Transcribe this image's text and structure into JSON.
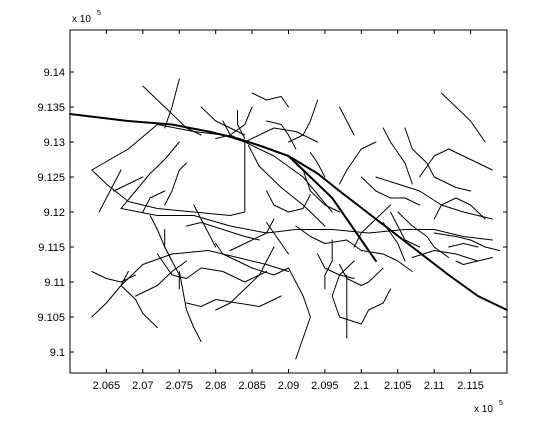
{
  "chart_data": {
    "type": "line",
    "title": "",
    "xlabel": "",
    "ylabel": "",
    "xlim": [
      206000,
      212000
    ],
    "ylim": [
      909700,
      914600
    ],
    "x_ticks": [
      206500,
      207000,
      207500,
      208000,
      208500,
      209000,
      209500,
      210000,
      210500,
      211000,
      211500
    ],
    "y_ticks": [
      910000,
      910500,
      911000,
      911500,
      912000,
      912500,
      913000,
      913500,
      914000
    ],
    "x_tick_labels": [
      "2.065",
      "2.07",
      "2.075",
      "2.08",
      "2.085",
      "2.09",
      "2.095",
      "2.1",
      "2.105",
      "2.11",
      "2.115"
    ],
    "y_tick_labels": [
      "9.1",
      "9.105",
      "9.11",
      "9.115",
      "9.12",
      "9.125",
      "9.13",
      "9.135",
      "9.14"
    ],
    "x_exponent_base": "x 10",
    "x_exponent_power": "5",
    "y_exponent_base": "x 10",
    "y_exponent_power": "5",
    "grid": false,
    "legend": "none",
    "line_color": "#000000",
    "series": [
      {
        "kind": "major",
        "x": [
          206000,
          206800,
          207400,
          207900,
          208300,
          208600,
          209000,
          209400,
          209700,
          210200,
          210700,
          211200,
          211600,
          212000
        ],
        "y": [
          913400,
          913300,
          913250,
          913150,
          913050,
          912950,
          912800,
          912550,
          912300,
          911900,
          911500,
          911100,
          910800,
          910600
        ]
      },
      {
        "kind": "major",
        "x": [
          209000,
          209300,
          209600,
          209800,
          210000,
          210200
        ],
        "y": [
          912800,
          912500,
          912200,
          911900,
          911600,
          911300
        ]
      },
      {
        "kind": "minor",
        "x": [
          206300,
          206800,
          207200,
          207700,
          208100,
          208400,
          208400,
          208200,
          207700,
          207200,
          206800,
          206500,
          206300
        ],
        "y": [
          912600,
          912900,
          913250,
          913150,
          913100,
          913000,
          912000,
          911950,
          912000,
          912050,
          912150,
          912400,
          912600
        ]
      },
      {
        "kind": "minor",
        "x": [
          206700,
          207200,
          207700,
          208200,
          208700,
          209100,
          209600,
          210100,
          210600,
          211000,
          211400,
          211800
        ],
        "y": [
          912050,
          911950,
          911950,
          911800,
          911700,
          911750,
          911750,
          911700,
          911750,
          911750,
          911650,
          911600
        ]
      },
      {
        "kind": "minor",
        "x": [
          208400,
          208800,
          209200,
          209600
        ],
        "y": [
          913000,
          912800,
          912500,
          912000
        ]
      },
      {
        "kind": "minor",
        "x": [
          208450,
          208600,
          208900,
          209200,
          209500
        ],
        "y": [
          912950,
          912650,
          912350,
          912100,
          911800
        ]
      },
      {
        "kind": "minor",
        "x": [
          206700,
          207000,
          207400,
          207900,
          208300,
          208700,
          209000
        ],
        "y": [
          910950,
          911250,
          911400,
          911450,
          911350,
          911250,
          911150
        ]
      },
      {
        "kind": "minor",
        "x": [
          206700,
          206900,
          207000,
          207200
        ],
        "y": [
          910950,
          910750,
          910550,
          910350
        ]
      },
      {
        "kind": "minor",
        "x": [
          206300,
          206500,
          206700,
          206800
        ],
        "y": [
          910500,
          910700,
          910950,
          911150
        ]
      },
      {
        "kind": "minor",
        "x": [
          207200,
          207400,
          207600,
          207800,
          208100,
          208400,
          208700
        ],
        "y": [
          911400,
          911100,
          911050,
          911200,
          911150,
          911000,
          911150
        ]
      },
      {
        "kind": "minor",
        "x": [
          207600,
          207800,
          208000,
          208300,
          208600,
          208900
        ],
        "y": [
          910700,
          910650,
          910750,
          910700,
          910650,
          910800
        ]
      },
      {
        "kind": "minor",
        "x": [
          207500,
          207600,
          207700,
          207800
        ],
        "y": [
          911150,
          910600,
          910350,
          910150
        ]
      },
      {
        "kind": "minor",
        "x": [
          208200,
          208400,
          208700,
          208800
        ],
        "y": [
          911450,
          911550,
          911700,
          911900
        ]
      },
      {
        "kind": "minor",
        "x": [
          209100,
          209300,
          209500,
          209800,
          210000,
          210300,
          210500,
          210700
        ],
        "y": [
          911800,
          911650,
          911550,
          911600,
          911450,
          911400,
          911300,
          911150
        ]
      },
      {
        "kind": "minor",
        "x": [
          209600,
          209600,
          209500,
          209500
        ],
        "y": [
          911600,
          911300,
          911100,
          910900
        ]
      },
      {
        "kind": "minor",
        "x": [
          209900,
          209700,
          209600,
          209700,
          210000,
          210100,
          210300,
          210400
        ],
        "y": [
          911300,
          911100,
          910800,
          910500,
          910400,
          910600,
          910700,
          910900
        ]
      },
      {
        "kind": "minor",
        "x": [
          210200,
          210500,
          210800,
          211100,
          211400,
          211800
        ],
        "y": [
          912500,
          912400,
          912300,
          912100,
          912000,
          911900
        ]
      },
      {
        "kind": "minor",
        "x": [
          210800,
          211000,
          211200,
          211400,
          211600,
          211800
        ],
        "y": [
          912500,
          912800,
          912900,
          912800,
          912700,
          912600
        ]
      },
      {
        "kind": "minor",
        "x": [
          209700,
          209800,
          209900,
          210000,
          210200
        ],
        "y": [
          912400,
          912600,
          912750,
          912900,
          913000
        ]
      },
      {
        "kind": "minor",
        "x": [
          209200,
          209300,
          209500,
          209700
        ],
        "y": [
          912600,
          912300,
          912100,
          912000
        ]
      },
      {
        "kind": "minor",
        "x": [
          208700,
          208800,
          209000,
          209200,
          209300
        ],
        "y": [
          912300,
          912100,
          912000,
          912050,
          912250
        ]
      },
      {
        "kind": "minor",
        "x": [
          209700,
          209800,
          210000,
          210100,
          210300
        ],
        "y": [
          911250,
          911050,
          910950,
          911000,
          911200
        ]
      },
      {
        "kind": "minor",
        "x": [
          210000,
          210200,
          210400,
          210600,
          210800
        ],
        "y": [
          912500,
          912300,
          912200,
          912200,
          912100
        ]
      },
      {
        "kind": "minor",
        "x": [
          210500,
          210700,
          210900,
          211000,
          211200
        ],
        "y": [
          912000,
          911800,
          911650,
          911500,
          911350
        ]
      },
      {
        "kind": "minor",
        "x": [
          210600,
          210700,
          210900,
          211000,
          211300,
          211500
        ],
        "y": [
          913200,
          912900,
          912700,
          912500,
          912350,
          912300
        ]
      },
      {
        "kind": "minor",
        "x": [
          211000,
          211300,
          211500,
          211700,
          211900
        ],
        "y": [
          911700,
          911650,
          911600,
          911500,
          911450
        ]
      },
      {
        "kind": "minor",
        "x": [
          210700,
          211000,
          211300,
          211600
        ],
        "y": [
          911350,
          911450,
          911400,
          911300
        ]
      },
      {
        "kind": "minor",
        "x": [
          207600,
          207800,
          208100,
          208400,
          208600
        ],
        "y": [
          911800,
          911850,
          911750,
          911650,
          911600
        ]
      },
      {
        "kind": "minor",
        "x": [
          208800,
          208700,
          208600,
          208400,
          208200,
          208000
        ],
        "y": [
          911500,
          911300,
          911100,
          910900,
          910700,
          910600
        ]
      },
      {
        "kind": "minor",
        "x": [
          208000,
          208100,
          208300,
          208500,
          208800,
          209000
        ],
        "y": [
          911550,
          911400,
          911300,
          911200,
          911100,
          911200
        ]
      },
      {
        "kind": "minor",
        "x": [
          209000,
          209100,
          209200,
          209300,
          209200,
          209100
        ],
        "y": [
          911200,
          911000,
          910800,
          910500,
          910200,
          909900
        ]
      },
      {
        "kind": "minor",
        "x": [
          209800,
          209800,
          209800,
          209800
        ],
        "y": [
          911100,
          910800,
          910500,
          910200
        ]
      },
      {
        "kind": "minor",
        "x": [
          206700,
          206900,
          207100,
          207300,
          207500
        ],
        "y": [
          912050,
          912300,
          912550,
          912750,
          913000
        ]
      },
      {
        "kind": "minor",
        "x": [
          207300,
          207400,
          207500,
          207600
        ],
        "y": [
          912100,
          912300,
          912600,
          912700
        ]
      },
      {
        "kind": "minor",
        "x": [
          207700,
          207800,
          207900,
          208000
        ],
        "y": [
          912100,
          911900,
          911700,
          911500
        ]
      },
      {
        "kind": "minor",
        "x": [
          207100,
          207200,
          207300,
          207400
        ],
        "y": [
          911950,
          911750,
          911500,
          911300
        ]
      },
      {
        "kind": "minor",
        "x": [
          207300,
          207300,
          207400,
          207500,
          207500
        ],
        "y": [
          911750,
          911500,
          911300,
          911100,
          910900
        ]
      },
      {
        "kind": "minor",
        "x": [
          208700,
          208800,
          208900,
          209000
        ],
        "y": [
          911850,
          911700,
          911550,
          911400
        ]
      },
      {
        "kind": "minor",
        "x": [
          209400,
          209500,
          209700,
          209900
        ],
        "y": [
          911400,
          911200,
          911100,
          911050
        ]
      },
      {
        "kind": "minor",
        "x": [
          209900,
          210000,
          210200,
          210400
        ],
        "y": [
          911500,
          911700,
          911900,
          912100
        ]
      },
      {
        "kind": "minor",
        "x": [
          210300,
          210400,
          210500,
          210600
        ],
        "y": [
          911850,
          911700,
          911550,
          911300
        ]
      },
      {
        "kind": "minor",
        "x": [
          211000,
          211100,
          211300,
          211500,
          211700
        ],
        "y": [
          911900,
          912100,
          912200,
          912100,
          911900
        ]
      },
      {
        "kind": "minor",
        "x": [
          211200,
          211400,
          211600
        ],
        "y": [
          911500,
          911550,
          911500
        ]
      },
      {
        "kind": "minor",
        "x": [
          207000,
          207200,
          207400,
          207600,
          207800
        ],
        "y": [
          913800,
          913600,
          913400,
          913200,
          913100
        ]
      },
      {
        "kind": "minor",
        "x": [
          207500,
          207400,
          207300
        ],
        "y": [
          913900,
          913500,
          913200
        ]
      },
      {
        "kind": "minor",
        "x": [
          208500,
          208700,
          208900,
          209000
        ],
        "y": [
          913700,
          913600,
          913650,
          913500
        ]
      },
      {
        "kind": "minor",
        "x": [
          208500,
          208400,
          208200,
          208000
        ],
        "y": [
          913500,
          913250,
          913100,
          913050
        ]
      },
      {
        "kind": "minor",
        "x": [
          208300,
          208300,
          208400
        ],
        "y": [
          913450,
          913250,
          913050
        ]
      },
      {
        "kind": "minor",
        "x": [
          207800,
          208000,
          208200,
          208400
        ],
        "y": [
          913500,
          913300,
          913200,
          913100
        ]
      },
      {
        "kind": "minor",
        "x": [
          209400,
          209300,
          209200,
          209000
        ],
        "y": [
          913600,
          913300,
          913100,
          913000
        ]
      },
      {
        "kind": "minor",
        "x": [
          209700,
          209800,
          209900
        ],
        "y": [
          913500,
          913300,
          913100
        ]
      },
      {
        "kind": "minor",
        "x": [
          210300,
          210400,
          210600,
          210700
        ],
        "y": [
          913200,
          913000,
          912700,
          912400
        ]
      },
      {
        "kind": "minor",
        "x": [
          211100,
          211300,
          211500,
          211700
        ],
        "y": [
          913700,
          913500,
          913300,
          913000
        ]
      },
      {
        "kind": "minor",
        "x": [
          208400,
          208800,
          209100,
          209400
        ],
        "y": [
          913000,
          913200,
          913150,
          913000
        ]
      },
      {
        "kind": "minor",
        "x": [
          208700,
          208900,
          209000,
          209100
        ],
        "y": [
          913300,
          913250,
          913100,
          912900
        ]
      },
      {
        "kind": "minor",
        "x": [
          208100,
          208200,
          208400
        ],
        "y": [
          913300,
          913100,
          913000
        ]
      },
      {
        "kind": "minor",
        "x": [
          206700,
          206600,
          206500,
          206400
        ],
        "y": [
          912600,
          912400,
          912200,
          912000
        ]
      },
      {
        "kind": "minor",
        "x": [
          206600,
          206800,
          207000
        ],
        "y": [
          912300,
          912400,
          912500
        ]
      },
      {
        "kind": "minor",
        "x": [
          207000,
          207100,
          207300
        ],
        "y": [
          912000,
          912200,
          912300
        ]
      },
      {
        "kind": "minor",
        "x": [
          207600,
          207400,
          207200,
          206900
        ],
        "y": [
          911300,
          911150,
          910950,
          910800
        ]
      },
      {
        "kind": "minor",
        "x": [
          206300,
          206500,
          206700,
          206900
        ],
        "y": [
          911150,
          911050,
          911000,
          911100
        ]
      },
      {
        "kind": "minor",
        "x": [
          209300,
          209400,
          209500
        ],
        "y": [
          912850,
          912700,
          912500
        ]
      },
      {
        "kind": "minor",
        "x": [
          210400,
          210500,
          210600,
          210800
        ],
        "y": [
          912000,
          911800,
          911600,
          911500
        ]
      },
      {
        "kind": "minor",
        "x": [
          211300,
          211400,
          211600,
          211800
        ],
        "y": [
          911300,
          911250,
          911300,
          911350
        ]
      }
    ]
  }
}
